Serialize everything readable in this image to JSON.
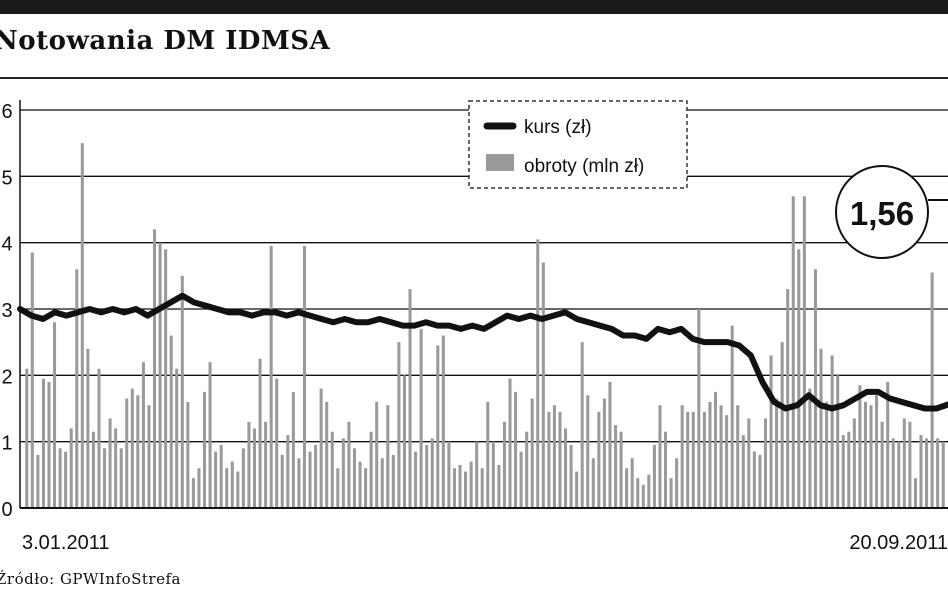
{
  "header": {
    "title": "Notowania DM IDMSA"
  },
  "source": "Źródło: GPWInfoStrefa",
  "callout": {
    "value": "1,56"
  },
  "colors": {
    "kurs_line": "#111111",
    "obroty_bar": "#9a9a9a",
    "grid": "#111111"
  },
  "chart_data": {
    "type": "bar+line",
    "title": "Notowania DM IDMSA",
    "ylim": [
      0,
      6
    ],
    "y_ticks": [
      "0",
      "1",
      "2",
      "3",
      "4",
      "5",
      "6"
    ],
    "x_start_label": "3.01.2011",
    "x_end_label": "20.09.2011",
    "legend": {
      "placement": "top-center",
      "entries": [
        "kurs (zł)",
        "obroty (mln zł)"
      ]
    },
    "grid": true,
    "series": [
      {
        "name": "obroty (mln zł)",
        "type": "bar",
        "values": [
          2.1,
          3.85,
          0.8,
          1.95,
          1.9,
          2.8,
          0.9,
          0.85,
          1.2,
          3.6,
          5.5,
          2.4,
          1.15,
          2.1,
          0.9,
          1.35,
          1.2,
          0.9,
          1.65,
          1.8,
          1.7,
          2.2,
          1.55,
          4.2,
          4.0,
          3.9,
          2.6,
          2.1,
          3.5,
          1.6,
          0.45,
          0.6,
          1.75,
          2.2,
          0.85,
          0.95,
          0.6,
          0.7,
          0.55,
          0.9,
          1.3,
          1.2,
          2.25,
          1.3,
          3.95,
          1.95,
          0.8,
          1.1,
          1.75,
          0.75,
          3.95,
          0.85,
          0.95,
          1.8,
          1.6,
          1.15,
          0.6,
          1.05,
          1.3,
          0.9,
          0.7,
          0.6,
          1.15,
          1.6,
          0.75,
          1.55,
          0.8,
          2.5,
          2.0,
          3.3,
          0.85,
          2.7,
          0.95,
          1.05,
          2.45,
          2.6,
          1.0,
          0.6,
          0.65,
          0.55,
          0.7,
          1.0,
          0.6,
          1.6,
          1.0,
          0.65,
          1.3,
          1.95,
          1.75,
          0.85,
          1.15,
          1.65,
          4.05,
          3.7,
          1.45,
          1.55,
          1.45,
          1.2,
          0.95,
          0.55,
          2.5,
          1.7,
          0.75,
          1.45,
          1.65,
          1.9,
          1.25,
          1.15,
          0.6,
          0.75,
          0.45,
          0.35,
          0.5,
          0.95,
          1.55,
          1.15,
          0.45,
          0.75,
          1.55,
          1.45,
          1.45,
          3.0,
          1.45,
          1.6,
          1.75,
          1.55,
          1.4,
          2.75,
          1.55,
          1.1,
          1.35,
          0.85,
          0.8,
          1.35,
          2.3,
          1.65,
          2.5,
          3.3,
          4.7,
          3.9,
          4.7,
          1.8,
          3.6,
          2.4,
          1.6,
          2.3,
          2.0,
          1.1,
          1.15,
          1.35,
          1.85,
          1.6,
          1.55,
          1.7,
          1.3,
          1.9,
          1.05,
          1.0,
          1.35,
          1.3,
          0.45,
          1.1,
          1.05,
          3.55,
          1.05,
          1.0
        ]
      },
      {
        "name": "kurs (zł)",
        "type": "line",
        "values": [
          3.0,
          2.9,
          2.85,
          2.95,
          2.9,
          2.95,
          3.0,
          2.95,
          3.0,
          2.95,
          3.0,
          2.9,
          3.0,
          3.1,
          3.2,
          3.1,
          3.05,
          3.0,
          2.95,
          2.95,
          2.9,
          2.95,
          2.95,
          2.9,
          2.95,
          2.9,
          2.85,
          2.8,
          2.85,
          2.8,
          2.8,
          2.85,
          2.8,
          2.75,
          2.75,
          2.8,
          2.75,
          2.75,
          2.7,
          2.75,
          2.7,
          2.8,
          2.9,
          2.85,
          2.9,
          2.85,
          2.9,
          2.95,
          2.85,
          2.8,
          2.75,
          2.7,
          2.6,
          2.6,
          2.55,
          2.7,
          2.65,
          2.7,
          2.55,
          2.5,
          2.5,
          2.5,
          2.45,
          2.3,
          1.9,
          1.6,
          1.5,
          1.55,
          1.7,
          1.55,
          1.5,
          1.55,
          1.65,
          1.75,
          1.75,
          1.65,
          1.6,
          1.55,
          1.5,
          1.5,
          1.56
        ]
      }
    ]
  }
}
